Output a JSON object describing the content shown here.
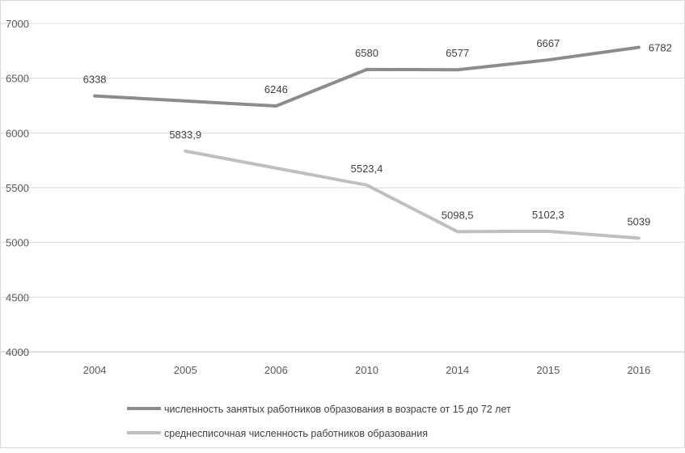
{
  "chart_data": {
    "type": "line",
    "categories": [
      "2004",
      "2005",
      "2006",
      "2010",
      "2014",
      "2015",
      "2016"
    ],
    "ylim": [
      4000,
      7000
    ],
    "yticks": [
      4000,
      4500,
      5000,
      5500,
      6000,
      6500,
      7000
    ],
    "ytick_labels": [
      "4000",
      "4500",
      "5000",
      "5500",
      "6000",
      "6500",
      "7000"
    ],
    "grid": true,
    "legend_position": "bottom",
    "series": [
      {
        "name": "численность занятых работников образования в возрасте от 15 до 72 лет",
        "color": "#8c8c8c",
        "values": [
          6338,
          null,
          6246,
          6580,
          6577,
          6667,
          6782
        ],
        "labels": [
          "6338",
          "",
          "6246",
          "6580",
          "6577",
          "6667",
          "6782"
        ]
      },
      {
        "name": "среднесписочная численность работников образования",
        "color": "#bfbfbf",
        "values": [
          null,
          5833.9,
          null,
          5523.4,
          5098.5,
          5102.3,
          5039
        ],
        "labels": [
          "",
          "5833,9",
          "",
          "5523,4",
          "5098,5",
          "5102,3",
          "5039"
        ]
      }
    ]
  }
}
